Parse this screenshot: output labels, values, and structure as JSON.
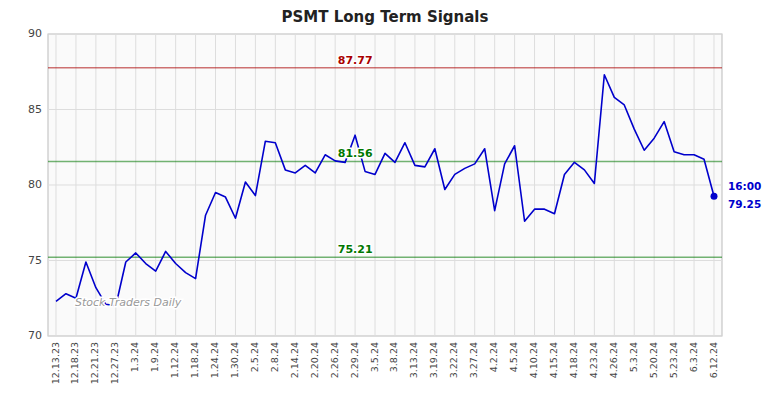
{
  "chart_data": {
    "type": "line",
    "title": "PSMT Long Term Signals",
    "categories": [
      "12.13.23",
      null,
      "12.18.23",
      null,
      "12.21.23",
      null,
      "12.27.23",
      null,
      "1.3.24",
      null,
      "1.9.24",
      null,
      "1.12.24",
      null,
      "1.18.24",
      null,
      "1.24.24",
      null,
      "1.30.24",
      null,
      "2.5.24",
      null,
      "2.8.24",
      null,
      "2.14.24",
      null,
      "2.20.24",
      null,
      "2.26.24",
      null,
      "2.29.24",
      null,
      "3.5.24",
      null,
      "3.8.24",
      null,
      "3.13.24",
      null,
      "3.19.24",
      null,
      "3.22.24",
      null,
      "3.27.24",
      null,
      "4.2.24",
      null,
      "4.5.24",
      null,
      "4.10.24",
      null,
      "4.15.24",
      null,
      "4.18.24",
      null,
      "4.23.24",
      null,
      "4.26.24",
      null,
      "5.3.24",
      null,
      "5.20.24",
      null,
      "5.23.24",
      null,
      "6.3.24",
      null,
      "6.12.24"
    ],
    "values": [
      72.3,
      72.8,
      72.5,
      74.9,
      73.2,
      72.1,
      72.0,
      74.9,
      75.5,
      74.8,
      74.3,
      75.6,
      74.8,
      74.2,
      73.8,
      78.0,
      79.5,
      79.2,
      77.8,
      80.2,
      79.3,
      82.9,
      82.8,
      81.0,
      80.8,
      81.3,
      80.8,
      82.0,
      81.6,
      81.5,
      83.3,
      80.9,
      80.7,
      82.1,
      81.5,
      82.8,
      81.3,
      81.2,
      82.4,
      79.7,
      80.7,
      81.1,
      81.4,
      82.4,
      78.3,
      81.4,
      82.6,
      77.6,
      78.4,
      78.4,
      78.1,
      80.7,
      81.5,
      81.0,
      80.1,
      87.3,
      85.8,
      85.3,
      83.7,
      82.3,
      83.1,
      84.2,
      82.2,
      82.0,
      82.0,
      81.7,
      79.25
    ],
    "color": "#0000cc",
    "reference_lines": [
      {
        "value": 87.77,
        "label": "87.77",
        "color": "#aa0000"
      },
      {
        "value": 81.56,
        "label": "81.56",
        "color": "#007700"
      },
      {
        "value": 75.21,
        "label": "75.21",
        "color": "#007700"
      }
    ],
    "last_point": {
      "time": "16:00",
      "value": 79.25
    },
    "watermark": "Stock Traders Daily",
    "ylim": [
      70,
      90
    ],
    "yticks": [
      70,
      75,
      80,
      85,
      90
    ],
    "grid": true
  }
}
